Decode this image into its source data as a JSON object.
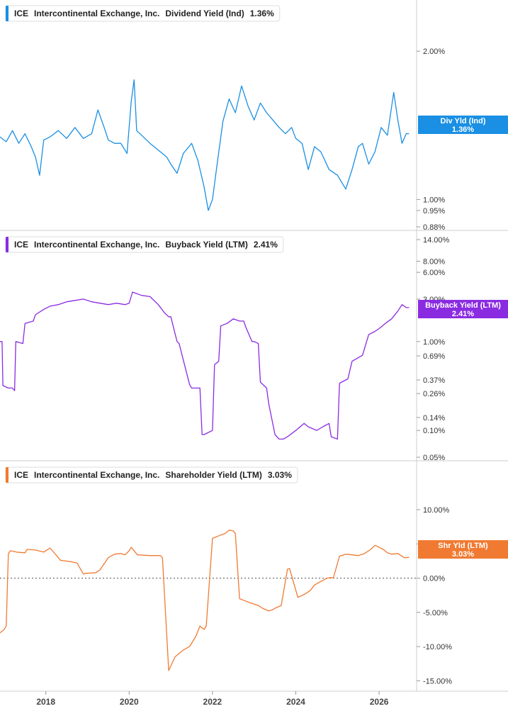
{
  "chart_data": [
    {
      "type": "line",
      "ticker": "ICE",
      "company": "Intercontinental Exchange, Inc.",
      "metric": "Dividend Yield (Ind)",
      "current_value": "1.36%",
      "badge_label": "Div Yld (Ind)",
      "badge_value": "1.36%",
      "color": "#1a8fe3",
      "scale": "log",
      "ylim": [
        0.88,
        2.3
      ],
      "yticks": [
        "2.00%",
        "1.00%",
        "0.95%",
        "0.88%"
      ],
      "ytick_values": [
        2.0,
        1.0,
        0.95,
        0.88
      ],
      "series": [
        {
          "x": [
            2016.9,
            2017.05,
            2017.2,
            2017.35,
            2017.5,
            2017.65,
            2017.75,
            2017.85,
            2017.95,
            2018.1,
            2018.3,
            2018.5,
            2018.7,
            2018.9,
            2019.1,
            2019.25,
            2019.4,
            2019.5,
            2019.65,
            2019.8,
            2019.95,
            2020.05,
            2020.12,
            2020.18,
            2020.3,
            2020.5,
            2020.7,
            2020.9,
            2021.0,
            2021.15,
            2021.3,
            2021.5,
            2021.65,
            2021.8,
            2021.9,
            2022.0,
            2022.1,
            2022.25,
            2022.4,
            2022.55,
            2022.7,
            2022.85,
            2023.0,
            2023.15,
            2023.3,
            2023.45,
            2023.6,
            2023.75,
            2023.9,
            2024.0,
            2024.15,
            2024.3,
            2024.45,
            2024.6,
            2024.8,
            2025.0,
            2025.2,
            2025.35,
            2025.5,
            2025.6,
            2025.75,
            2025.9,
            2026.05,
            2026.2,
            2026.35,
            2026.45,
            2026.55,
            2026.65,
            2026.72
          ],
          "y": [
            1.34,
            1.31,
            1.38,
            1.3,
            1.36,
            1.28,
            1.22,
            1.12,
            1.32,
            1.34,
            1.38,
            1.33,
            1.4,
            1.33,
            1.36,
            1.52,
            1.4,
            1.32,
            1.3,
            1.3,
            1.24,
            1.58,
            1.75,
            1.38,
            1.35,
            1.3,
            1.26,
            1.22,
            1.18,
            1.13,
            1.24,
            1.3,
            1.2,
            1.06,
            0.95,
            1.0,
            1.16,
            1.44,
            1.6,
            1.5,
            1.7,
            1.55,
            1.45,
            1.57,
            1.5,
            1.45,
            1.4,
            1.36,
            1.4,
            1.33,
            1.3,
            1.15,
            1.28,
            1.25,
            1.15,
            1.12,
            1.05,
            1.15,
            1.28,
            1.3,
            1.18,
            1.25,
            1.4,
            1.35,
            1.65,
            1.45,
            1.3,
            1.36,
            1.36
          ]
        }
      ]
    },
    {
      "type": "line",
      "ticker": "ICE",
      "company": "Intercontinental Exchange, Inc.",
      "metric": "Buyback Yield (LTM)",
      "current_value": "2.41%",
      "badge_label": "Buyback Yield (LTM)",
      "badge_value": "2.41%",
      "color": "#8a2be2",
      "scale": "log",
      "ylim": [
        0.05,
        14.0
      ],
      "yticks": [
        "14.00%",
        "8.00%",
        "6.00%",
        "3.00%",
        "1.00%",
        "0.69%",
        "0.37%",
        "0.26%",
        "0.14%",
        "0.10%",
        "0.05%"
      ],
      "ytick_values": [
        14.0,
        8.0,
        6.0,
        3.0,
        1.0,
        0.69,
        0.37,
        0.26,
        0.14,
        0.1,
        0.05
      ],
      "series": [
        {
          "x": [
            2016.9,
            2016.95,
            2016.97,
            2017.1,
            2017.2,
            2017.25,
            2017.28,
            2017.45,
            2017.5,
            2017.7,
            2017.75,
            2017.95,
            2018.1,
            2018.3,
            2018.5,
            2018.7,
            2018.9,
            2019.1,
            2019.3,
            2019.5,
            2019.7,
            2019.9,
            2020.0,
            2020.08,
            2020.3,
            2020.5,
            2020.7,
            2020.85,
            2020.95,
            2021.0,
            2021.15,
            2021.2,
            2021.45,
            2021.5,
            2021.7,
            2021.75,
            2021.8,
            2022.0,
            2022.05,
            2022.15,
            2022.2,
            2022.35,
            2022.5,
            2022.65,
            2022.75,
            2022.8,
            2022.95,
            2023.0,
            2023.1,
            2023.15,
            2023.3,
            2023.35,
            2023.5,
            2023.6,
            2023.7,
            2023.8,
            2024.0,
            2024.2,
            2024.3,
            2024.5,
            2024.65,
            2024.8,
            2024.85,
            2025.0,
            2025.05,
            2025.1,
            2025.25,
            2025.35,
            2025.6,
            2025.75,
            2025.9,
            2026.0,
            2026.15,
            2026.3,
            2026.45,
            2026.55,
            2026.65,
            2026.72
          ],
          "y": [
            1.0,
            1.0,
            0.32,
            0.3,
            0.3,
            0.28,
            1.0,
            0.95,
            1.6,
            1.7,
            2.0,
            2.3,
            2.5,
            2.6,
            2.8,
            2.9,
            3.0,
            2.8,
            2.7,
            2.6,
            2.7,
            2.6,
            2.7,
            3.6,
            3.3,
            3.2,
            2.6,
            2.1,
            1.9,
            1.9,
            1.0,
            0.95,
            0.33,
            0.3,
            0.3,
            0.09,
            0.09,
            0.1,
            0.55,
            0.6,
            1.5,
            1.6,
            1.8,
            1.7,
            1.7,
            1.45,
            1.0,
            1.0,
            0.95,
            0.35,
            0.3,
            0.2,
            0.09,
            0.08,
            0.08,
            0.085,
            0.1,
            0.12,
            0.11,
            0.1,
            0.11,
            0.12,
            0.085,
            0.08,
            0.34,
            0.35,
            0.38,
            0.6,
            0.7,
            1.2,
            1.3,
            1.4,
            1.6,
            1.8,
            2.2,
            2.6,
            2.41,
            2.41
          ]
        }
      ]
    },
    {
      "type": "line",
      "ticker": "ICE",
      "company": "Intercontinental Exchange, Inc.",
      "metric": "Shareholder Yield (LTM)",
      "current_value": "3.03%",
      "badge_label": "Shr Yld (LTM)",
      "badge_value": "3.03%",
      "color": "#f07a32",
      "scale": "linear",
      "ylim": [
        -16.0,
        13.0
      ],
      "yticks": [
        "10.00%",
        "5.00%",
        "0.00%",
        "-5.00%",
        "-10.00%",
        "-15.00%"
      ],
      "ytick_values": [
        10.0,
        5.0,
        0.0,
        -5.0,
        -10.0,
        -15.0
      ],
      "zero_line": true,
      "series": [
        {
          "x": [
            2016.9,
            2017.0,
            2017.05,
            2017.1,
            2017.15,
            2017.3,
            2017.5,
            2017.55,
            2017.75,
            2017.95,
            2018.1,
            2018.3,
            2018.35,
            2018.6,
            2018.75,
            2018.9,
            2018.95,
            2019.2,
            2019.3,
            2019.5,
            2019.65,
            2019.8,
            2019.9,
            2020.0,
            2020.05,
            2020.2,
            2020.5,
            2020.75,
            2020.8,
            2020.95,
            2021.1,
            2021.3,
            2021.45,
            2021.6,
            2021.7,
            2021.8,
            2021.85,
            2022.0,
            2022.2,
            2022.3,
            2022.4,
            2022.5,
            2022.55,
            2022.65,
            2022.9,
            2023.1,
            2023.2,
            2023.35,
            2023.45,
            2023.5,
            2023.65,
            2023.8,
            2023.85,
            2024.05,
            2024.2,
            2024.35,
            2024.45,
            2024.6,
            2024.75,
            2024.85,
            2024.9,
            2025.05,
            2025.2,
            2025.35,
            2025.5,
            2025.65,
            2025.8,
            2025.9,
            2026.0,
            2026.1,
            2026.2,
            2026.3,
            2026.45,
            2026.6,
            2026.72
          ],
          "y": [
            -8.0,
            -7.5,
            -7.0,
            3.6,
            4.0,
            3.8,
            3.7,
            4.2,
            4.1,
            3.8,
            4.4,
            3.0,
            2.6,
            2.4,
            2.2,
            0.6,
            0.7,
            0.8,
            1.2,
            3.0,
            3.5,
            3.6,
            3.4,
            4.0,
            4.5,
            3.4,
            3.3,
            3.3,
            3.0,
            -13.5,
            -11.5,
            -10.5,
            -10.0,
            -8.5,
            -7.0,
            -7.5,
            -7.0,
            5.8,
            6.3,
            6.5,
            7.0,
            6.9,
            6.5,
            -3.0,
            -3.6,
            -4.0,
            -4.4,
            -4.8,
            -4.6,
            -4.4,
            -4.0,
            1.3,
            1.4,
            -2.8,
            -2.4,
            -1.8,
            -1.0,
            -0.5,
            0.0,
            0.1,
            0.0,
            3.2,
            3.5,
            3.4,
            3.3,
            3.6,
            4.2,
            4.8,
            4.5,
            4.2,
            3.7,
            3.5,
            3.6,
            3.0,
            3.03
          ]
        }
      ]
    }
  ],
  "xaxis": {
    "range": [
      2016.9,
      2026.9
    ],
    "ticks": [
      "2018",
      "2020",
      "2022",
      "2024",
      "2026"
    ],
    "tick_values": [
      2018,
      2020,
      2022,
      2024,
      2026
    ]
  },
  "colors": {
    "axis": "#cccccc",
    "zero_line": "#555555",
    "background": "#ffffff"
  }
}
